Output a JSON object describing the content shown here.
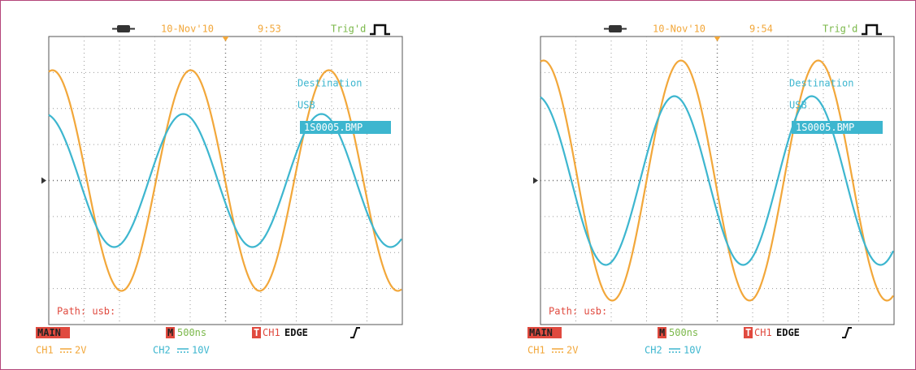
{
  "screens": [
    {
      "date": "10-Nov'10",
      "time": "9:53",
      "trigger_status": "Trig'd",
      "menu": {
        "title": "Destination",
        "device": "USB",
        "file": "1S0005.BMP"
      },
      "path": "Path: usb:",
      "status": {
        "mode": "MAIN",
        "timebase_marker": "M",
        "timebase": "500ns",
        "trigger_marker": "T",
        "trigger_source": "CH1",
        "trigger_type": "EDGE"
      },
      "channels": [
        {
          "name": "CH1",
          "scale": "2V"
        },
        {
          "name": "CH2",
          "scale": "10V"
        }
      ]
    },
    {
      "date": "10-Nov'10",
      "time": "9:54",
      "trigger_status": "Trig'd",
      "menu": {
        "title": "Destination",
        "device": "USB",
        "file": "1S0005.BMP"
      },
      "path": "Path: usb:",
      "status": {
        "mode": "MAIN",
        "timebase_marker": "M",
        "timebase": "500ns",
        "trigger_marker": "T",
        "trigger_source": "CH1",
        "trigger_type": "EDGE"
      },
      "channels": [
        {
          "name": "CH1",
          "scale": "2V"
        },
        {
          "name": "CH2",
          "scale": "10V"
        }
      ]
    }
  ]
}
